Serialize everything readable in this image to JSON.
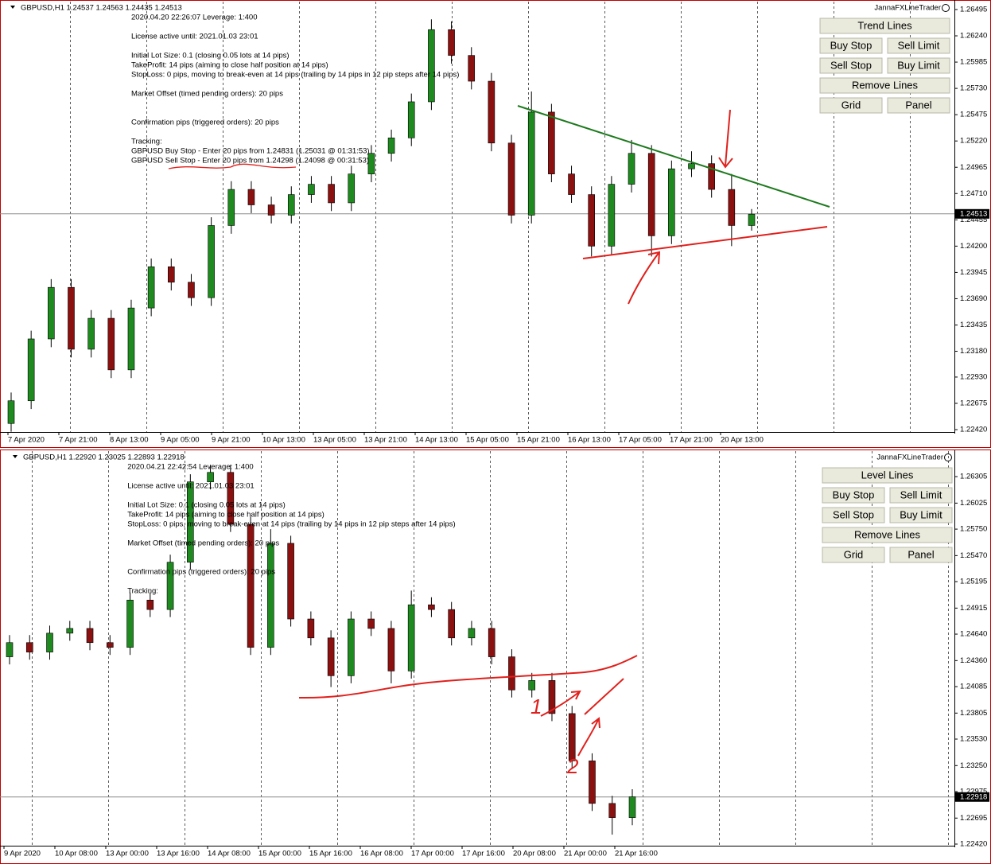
{
  "chart_data": [
    {
      "type": "candlestick",
      "header": "GBPUSD,H1  1.24537 1.24563 1.24435 1.24513",
      "expert": "JannaFXLineTrader",
      "info": [
        "2020.04.20 22:26:07    Leverage: 1:400",
        "License active until: 2021.01.03 23:01",
        "Initial Lot Size: 0.1  (closing 0.05 lots at 14 pips)",
        "TakeProfit: 14 pips  (aiming to close half position at 14 pips)",
        "StopLoss: 0 pips, moving to break-even at 14 pips  (trailing by 14 pips in 12 pip steps after 14 pips)",
        "Market Offset (timed pending orders): 20 pips",
        "Confirmation pips (triggered orders): 20 pips",
        "Tracking:",
        "GBPUSD Buy Stop - Enter 20 pips from 1.24831  (1.25031 @ 01:31:53)",
        "GBPUSD Sell Stop - Enter 20 pips from 1.24298  (1.24098 @ 00:31:53)"
      ],
      "buttons": [
        "Trend Lines",
        "Buy Stop",
        "Sell Limit",
        "Sell Stop",
        "Buy Limit",
        "Remove Lines",
        "Grid",
        "Panel"
      ],
      "ylim": [
        1.22397,
        1.26572
      ],
      "yticks": [
        {
          "value": 1.26495,
          "label": "1.26495"
        },
        {
          "value": 1.2624,
          "label": "1.26240"
        },
        {
          "value": 1.25985,
          "label": "1.25985"
        },
        {
          "value": 1.2573,
          "label": "1.25730"
        },
        {
          "value": 1.25475,
          "label": "1.25475"
        },
        {
          "value": 1.2522,
          "label": "1.25220"
        },
        {
          "value": 1.24965,
          "label": "1.24965"
        },
        {
          "value": 1.2471,
          "label": "1.24710"
        },
        {
          "value": 1.24455,
          "label": "1.24455"
        },
        {
          "value": 1.242,
          "label": "1.24200"
        },
        {
          "value": 1.23945,
          "label": "1.23945"
        },
        {
          "value": 1.2369,
          "label": "1.23690"
        },
        {
          "value": 1.23435,
          "label": "1.23435"
        },
        {
          "value": 1.2318,
          "label": "1.23180"
        },
        {
          "value": 1.2293,
          "label": "1.22930"
        },
        {
          "value": 1.22675,
          "label": "1.22675"
        },
        {
          "value": 1.2242,
          "label": "1.22420"
        }
      ],
      "xlabels": [
        "7 Apr 2020",
        "7 Apr 21:00",
        "8 Apr 13:00",
        "9 Apr 05:00",
        "9 Apr 21:00",
        "10 Apr 13:00",
        "13 Apr 05:00",
        "13 Apr 21:00",
        "14 Apr 13:00",
        "15 Apr 05:00",
        "15 Apr 21:00",
        "16 Apr 13:00",
        "17 Apr 05:00",
        "17 Apr 21:00",
        "20 Apr 13:00"
      ],
      "grid": true,
      "up_color": "#1f8a1f",
      "down_color": "#8b1010",
      "last_price": {
        "value": 1.24513,
        "label": "1.24513"
      },
      "annotations": [],
      "candles": [
        [
          1.2248,
          1.2278,
          1.224,
          1.227
        ],
        [
          1.227,
          1.2338,
          1.2262,
          1.233
        ],
        [
          1.233,
          1.2388,
          1.2322,
          1.238
        ],
        [
          1.238,
          1.2388,
          1.2312,
          1.232
        ],
        [
          1.232,
          1.2358,
          1.2312,
          1.235
        ],
        [
          1.235,
          1.2358,
          1.2292,
          1.23
        ],
        [
          1.23,
          1.2368,
          1.2292,
          1.236
        ],
        [
          1.236,
          1.2408,
          1.2352,
          1.24
        ],
        [
          1.24,
          1.2408,
          1.2377,
          1.2385
        ],
        [
          1.2385,
          1.2393,
          1.2362,
          1.237
        ],
        [
          1.237,
          1.2448,
          1.2362,
          1.244
        ],
        [
          1.244,
          1.2483,
          1.2432,
          1.2475
        ],
        [
          1.2475,
          1.2483,
          1.2452,
          1.246
        ],
        [
          1.246,
          1.2468,
          1.2442,
          1.245
        ],
        [
          1.245,
          1.2478,
          1.2442,
          1.247
        ],
        [
          1.247,
          1.2488,
          1.2462,
          1.248
        ],
        [
          1.248,
          1.2488,
          1.2454,
          1.2462
        ],
        [
          1.2462,
          1.2498,
          1.2454,
          1.249
        ],
        [
          1.249,
          1.2518,
          1.2482,
          1.251
        ],
        [
          1.251,
          1.2533,
          1.2502,
          1.2525
        ],
        [
          1.2525,
          1.2568,
          1.2517,
          1.256
        ],
        [
          1.256,
          1.264,
          1.2552,
          1.263
        ],
        [
          1.263,
          1.2638,
          1.2597,
          1.2605
        ],
        [
          1.2605,
          1.2613,
          1.2572,
          1.258
        ],
        [
          1.258,
          1.2588,
          1.2512,
          1.252
        ],
        [
          1.252,
          1.2528,
          1.2442,
          1.245
        ],
        [
          1.245,
          1.257,
          1.2442,
          1.255
        ],
        [
          1.255,
          1.2558,
          1.2482,
          1.249
        ],
        [
          1.249,
          1.2498,
          1.2462,
          1.247
        ],
        [
          1.247,
          1.2478,
          1.241,
          1.242
        ],
        [
          1.242,
          1.2488,
          1.2412,
          1.248
        ],
        [
          1.248,
          1.2523,
          1.2472,
          1.251
        ],
        [
          1.251,
          1.2518,
          1.241,
          1.243
        ],
        [
          1.243,
          1.2503,
          1.2422,
          1.2495
        ],
        [
          1.2495,
          1.2512,
          1.2487,
          1.25
        ],
        [
          1.25,
          1.2508,
          1.2467,
          1.2475
        ],
        [
          1.2475,
          1.249,
          1.242,
          1.244
        ],
        [
          1.244,
          1.2456,
          1.2435,
          1.2451
        ]
      ]
    },
    {
      "type": "candlestick",
      "header": "GBPUSD,H1  1.22920 1.23025 1.22893 1.22918",
      "expert": "JannaFXLineTrader",
      "info": [
        "2020.04.21 22:42:54    Leverage: 1:400",
        "License active until: 2021.01.03 23:01",
        "Initial Lot Size: 0.1  (closing 0.05 lots at 14 pips)",
        "TakeProfit: 14 pips  (aiming to close half position at 14 pips)",
        "StopLoss: 0 pips, moving to break-even at 14 pips  (trailing by 14 pips in 12 pip steps after 14 pips)",
        "Market Offset (timed pending orders): 20 pips",
        "Confirmation pips (triggered orders): 20 pips",
        "Tracking:"
      ],
      "buttons": [
        "Level Lines",
        "Buy Stop",
        "Sell Limit",
        "Sell Stop",
        "Buy Limit",
        "Remove Lines",
        "Grid",
        "Panel"
      ],
      "ylim": [
        1.22403,
        1.26575
      ],
      "yticks": [
        {
          "value": 1.26305,
          "label": "1.26305"
        },
        {
          "value": 1.26025,
          "label": "1.26025"
        },
        {
          "value": 1.2575,
          "label": "1.25750"
        },
        {
          "value": 1.2547,
          "label": "1.25470"
        },
        {
          "value": 1.25195,
          "label": "1.25195"
        },
        {
          "value": 1.24915,
          "label": "1.24915"
        },
        {
          "value": 1.2464,
          "label": "1.24640"
        },
        {
          "value": 1.2436,
          "label": "1.24360"
        },
        {
          "value": 1.24085,
          "label": "1.24085"
        },
        {
          "value": 1.23805,
          "label": "1.23805"
        },
        {
          "value": 1.2353,
          "label": "1.23530"
        },
        {
          "value": 1.2325,
          "label": "1.23250"
        },
        {
          "value": 1.22975,
          "label": "1.22975"
        },
        {
          "value": 1.22695,
          "label": "1.22695"
        },
        {
          "value": 1.2242,
          "label": "1.22420"
        }
      ],
      "xlabels": [
        "9 Apr 2020",
        "10 Apr 08:00",
        "13 Apr 00:00",
        "13 Apr 16:00",
        "14 Apr 08:00",
        "15 Apr 00:00",
        "15 Apr 16:00",
        "16 Apr 08:00",
        "17 Apr 00:00",
        "17 Apr 16:00",
        "20 Apr 08:00",
        "21 Apr 00:00",
        "21 Apr 16:00"
      ],
      "grid": true,
      "up_color": "#1f8a1f",
      "down_color": "#8b1010",
      "last_price": {
        "value": 1.22918,
        "label": "1.22918"
      },
      "annotations": [
        "1",
        "2"
      ],
      "candles": [
        [
          1.244,
          1.2463,
          1.2432,
          1.2455
        ],
        [
          1.2455,
          1.2463,
          1.2437,
          1.2445
        ],
        [
          1.2445,
          1.2473,
          1.2437,
          1.2465
        ],
        [
          1.2465,
          1.2478,
          1.2457,
          1.247
        ],
        [
          1.247,
          1.2478,
          1.2447,
          1.2455
        ],
        [
          1.2455,
          1.2463,
          1.2442,
          1.245
        ],
        [
          1.245,
          1.2508,
          1.2442,
          1.25
        ],
        [
          1.25,
          1.2508,
          1.2482,
          1.249
        ],
        [
          1.249,
          1.2548,
          1.2482,
          1.254
        ],
        [
          1.254,
          1.2633,
          1.2532,
          1.2625
        ],
        [
          1.2625,
          1.2643,
          1.2617,
          1.2635
        ],
        [
          1.2635,
          1.2643,
          1.2572,
          1.258
        ],
        [
          1.258,
          1.2588,
          1.2442,
          1.245
        ],
        [
          1.245,
          1.2575,
          1.2442,
          1.256
        ],
        [
          1.256,
          1.2568,
          1.2472,
          1.248
        ],
        [
          1.248,
          1.2488,
          1.2452,
          1.246
        ],
        [
          1.246,
          1.2468,
          1.2408,
          1.242
        ],
        [
          1.242,
          1.2488,
          1.2412,
          1.248
        ],
        [
          1.248,
          1.2488,
          1.2462,
          1.247
        ],
        [
          1.247,
          1.2478,
          1.2412,
          1.2425
        ],
        [
          1.2425,
          1.251,
          1.2417,
          1.2495
        ],
        [
          1.2495,
          1.2503,
          1.2482,
          1.249
        ],
        [
          1.249,
          1.2498,
          1.2452,
          1.246
        ],
        [
          1.246,
          1.2478,
          1.2452,
          1.247
        ],
        [
          1.247,
          1.2478,
          1.2432,
          1.244
        ],
        [
          1.244,
          1.2448,
          1.2397,
          1.2405
        ],
        [
          1.2405,
          1.2423,
          1.2397,
          1.2415
        ],
        [
          1.2415,
          1.2423,
          1.2372,
          1.238
        ],
        [
          1.238,
          1.2388,
          1.2322,
          1.233
        ],
        [
          1.233,
          1.2338,
          1.2277,
          1.2285
        ],
        [
          1.2285,
          1.2293,
          1.2252,
          1.227
        ],
        [
          1.227,
          1.23,
          1.2262,
          1.2292
        ]
      ]
    }
  ]
}
